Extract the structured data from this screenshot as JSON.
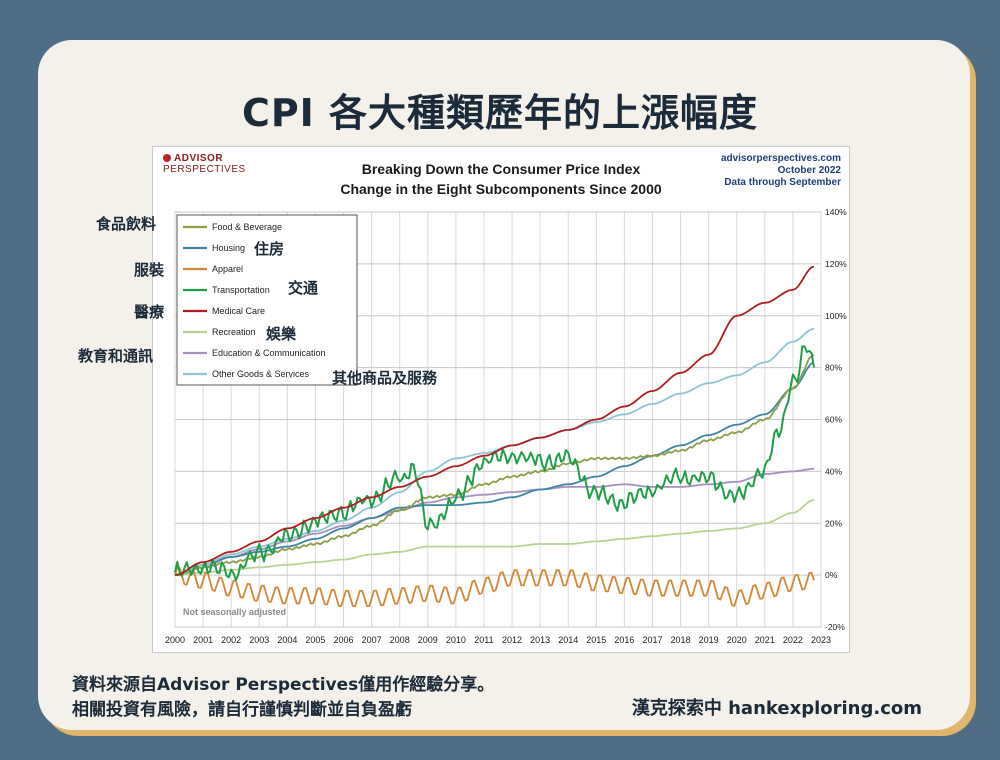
{
  "page_title": "CPI  各大種類歷年的上漲幅度",
  "annotations": {
    "food": "食品飲料",
    "housing": "住房",
    "apparel": "服裝",
    "transport": "交通",
    "medical": "醫療",
    "recreation": "娛樂",
    "education": "教育和通訊",
    "other": "其他商品及服務"
  },
  "footer": {
    "line1": "資料來源自Advisor  Perspectives僅用作經驗分享。",
    "line2": "相關投資有風險，請自行謹慎判斷並自負盈虧",
    "brand": "漢克探索中 hankexploring.com"
  },
  "chart_data": {
    "type": "line",
    "logo_line1": "ADVISOR",
    "logo_line2": "PERSPECTIVES",
    "title": "Breaking Down the Consumer Price Index",
    "subtitle": "Change in the Eight Subcomponents Since 2000",
    "source_lines": [
      "advisorperspectives.com",
      "October 2022",
      "Data through September"
    ],
    "note": "Not seasonally adjusted",
    "xlabel": "",
    "ylabel": "",
    "x_ticks": [
      "2000",
      "2001",
      "2002",
      "2003",
      "2004",
      "2005",
      "2006",
      "2007",
      "2008",
      "2009",
      "2010",
      "2011",
      "2012",
      "2013",
      "2014",
      "2015",
      "2016",
      "2017",
      "2018",
      "2019",
      "2020",
      "2021",
      "2022",
      "2023"
    ],
    "y_ticks": [
      "140%",
      "120%",
      "100%",
      "80%",
      "60%",
      "40%",
      "20%",
      "0%",
      "-20%"
    ],
    "xlim": [
      2000,
      2023
    ],
    "ylim": [
      -20,
      140
    ],
    "grid": true,
    "legend_position": "top-left",
    "series": [
      {
        "name": "Food & Beverage",
        "color": "#8ca04a",
        "style": "smooth",
        "points": [
          [
            2000,
            0
          ],
          [
            2001,
            3
          ],
          [
            2002,
            5
          ],
          [
            2003,
            7
          ],
          [
            2004,
            10
          ],
          [
            2005,
            12
          ],
          [
            2006,
            15
          ],
          [
            2007,
            19
          ],
          [
            2008,
            25
          ],
          [
            2009,
            30
          ],
          [
            2010,
            31
          ],
          [
            2011,
            35
          ],
          [
            2012,
            38
          ],
          [
            2013,
            40
          ],
          [
            2014,
            43
          ],
          [
            2015,
            45
          ],
          [
            2016,
            45
          ],
          [
            2017,
            46
          ],
          [
            2018,
            48
          ],
          [
            2019,
            52
          ],
          [
            2020,
            55
          ],
          [
            2021,
            60
          ],
          [
            2022,
            72
          ],
          [
            2022.75,
            85
          ]
        ]
      },
      {
        "name": "Housing",
        "color": "#3c85a6",
        "style": "smooth",
        "points": [
          [
            2000,
            0
          ],
          [
            2001,
            4
          ],
          [
            2002,
            7
          ],
          [
            2003,
            9
          ],
          [
            2004,
            11
          ],
          [
            2005,
            14
          ],
          [
            2006,
            18
          ],
          [
            2007,
            22
          ],
          [
            2008,
            26
          ],
          [
            2009,
            27
          ],
          [
            2010,
            27
          ],
          [
            2011,
            28
          ],
          [
            2012,
            30
          ],
          [
            2013,
            33
          ],
          [
            2014,
            35
          ],
          [
            2015,
            38
          ],
          [
            2016,
            42
          ],
          [
            2017,
            46
          ],
          [
            2018,
            50
          ],
          [
            2019,
            54
          ],
          [
            2020,
            58
          ],
          [
            2021,
            62
          ],
          [
            2022,
            72
          ],
          [
            2022.75,
            82
          ]
        ]
      },
      {
        "name": "Apparel",
        "color": "#d48737",
        "style": "seasonal",
        "points": [
          [
            2000,
            0
          ],
          [
            2001,
            -2
          ],
          [
            2002,
            -5
          ],
          [
            2003,
            -7
          ],
          [
            2004,
            -8
          ],
          [
            2005,
            -8
          ],
          [
            2006,
            -9
          ],
          [
            2007,
            -9
          ],
          [
            2008,
            -8
          ],
          [
            2009,
            -7
          ],
          [
            2010,
            -8
          ],
          [
            2011,
            -4
          ],
          [
            2012,
            -1
          ],
          [
            2013,
            -1
          ],
          [
            2014,
            -1
          ],
          [
            2015,
            -3
          ],
          [
            2016,
            -4
          ],
          [
            2017,
            -5
          ],
          [
            2018,
            -5
          ],
          [
            2019,
            -5
          ],
          [
            2020,
            -9
          ],
          [
            2021,
            -6
          ],
          [
            2022,
            -3
          ],
          [
            2022.75,
            -2
          ]
        ]
      },
      {
        "name": "Transportation",
        "color": "#1f9e47",
        "style": "volatile",
        "points": [
          [
            2000,
            1
          ],
          [
            2001,
            3
          ],
          [
            2002,
            1
          ],
          [
            2003,
            8
          ],
          [
            2004,
            15
          ],
          [
            2005,
            21
          ],
          [
            2006,
            25
          ],
          [
            2007,
            30
          ],
          [
            2008,
            37
          ],
          [
            2008.5,
            42
          ],
          [
            2009,
            18
          ],
          [
            2010,
            29
          ],
          [
            2011,
            44
          ],
          [
            2012,
            46
          ],
          [
            2013,
            44
          ],
          [
            2014,
            45
          ],
          [
            2015,
            31
          ],
          [
            2016,
            28
          ],
          [
            2017,
            33
          ],
          [
            2018,
            38
          ],
          [
            2019,
            37
          ],
          [
            2020,
            30
          ],
          [
            2021,
            41
          ],
          [
            2021.5,
            55
          ],
          [
            2022,
            75
          ],
          [
            2022.5,
            88
          ],
          [
            2022.75,
            80
          ]
        ]
      },
      {
        "name": "Medical Care",
        "color": "#b01e1e",
        "style": "smooth",
        "points": [
          [
            2000,
            0
          ],
          [
            2001,
            5
          ],
          [
            2002,
            9
          ],
          [
            2003,
            13
          ],
          [
            2004,
            18
          ],
          [
            2005,
            22
          ],
          [
            2006,
            26
          ],
          [
            2007,
            30
          ],
          [
            2008,
            34
          ],
          [
            2009,
            38
          ],
          [
            2010,
            42
          ],
          [
            2011,
            46
          ],
          [
            2012,
            50
          ],
          [
            2013,
            53
          ],
          [
            2014,
            56
          ],
          [
            2015,
            60
          ],
          [
            2016,
            65
          ],
          [
            2017,
            71
          ],
          [
            2018,
            78
          ],
          [
            2019,
            85
          ],
          [
            2020,
            100
          ],
          [
            2021,
            105
          ],
          [
            2022,
            110
          ],
          [
            2022.75,
            119
          ]
        ]
      },
      {
        "name": "Recreation",
        "color": "#b7d48f",
        "style": "smooth",
        "points": [
          [
            2000,
            0
          ],
          [
            2001,
            1
          ],
          [
            2002,
            2
          ],
          [
            2003,
            3
          ],
          [
            2004,
            4
          ],
          [
            2005,
            5
          ],
          [
            2006,
            6
          ],
          [
            2007,
            8
          ],
          [
            2008,
            9
          ],
          [
            2009,
            11
          ],
          [
            2010,
            11
          ],
          [
            2011,
            11
          ],
          [
            2012,
            11
          ],
          [
            2013,
            12
          ],
          [
            2014,
            12
          ],
          [
            2015,
            13
          ],
          [
            2016,
            14
          ],
          [
            2017,
            15
          ],
          [
            2018,
            16
          ],
          [
            2019,
            17
          ],
          [
            2020,
            18
          ],
          [
            2021,
            20
          ],
          [
            2022,
            24
          ],
          [
            2022.75,
            29
          ]
        ]
      },
      {
        "name": "Education & Communication",
        "color": "#a58fbf",
        "style": "smooth",
        "points": [
          [
            2000,
            0
          ],
          [
            2001,
            3
          ],
          [
            2002,
            7
          ],
          [
            2003,
            10
          ],
          [
            2004,
            13
          ],
          [
            2005,
            16
          ],
          [
            2006,
            19
          ],
          [
            2007,
            22
          ],
          [
            2008,
            25
          ],
          [
            2009,
            28
          ],
          [
            2010,
            30
          ],
          [
            2011,
            31
          ],
          [
            2012,
            32
          ],
          [
            2013,
            33
          ],
          [
            2014,
            34
          ],
          [
            2015,
            34
          ],
          [
            2016,
            35
          ],
          [
            2017,
            34
          ],
          [
            2018,
            34
          ],
          [
            2019,
            35
          ],
          [
            2020,
            36
          ],
          [
            2021,
            39
          ],
          [
            2022,
            40
          ],
          [
            2022.75,
            41
          ]
        ]
      },
      {
        "name": "Other Goods & Services",
        "color": "#8cc5d4",
        "style": "smooth",
        "points": [
          [
            2000,
            0
          ],
          [
            2001,
            4
          ],
          [
            2002,
            8
          ],
          [
            2003,
            11
          ],
          [
            2004,
            14
          ],
          [
            2005,
            17
          ],
          [
            2006,
            21
          ],
          [
            2007,
            26
          ],
          [
            2008,
            32
          ],
          [
            2009,
            40
          ],
          [
            2010,
            45
          ],
          [
            2011,
            47
          ],
          [
            2012,
            50
          ],
          [
            2013,
            53
          ],
          [
            2014,
            56
          ],
          [
            2015,
            59
          ],
          [
            2016,
            62
          ],
          [
            2017,
            66
          ],
          [
            2018,
            70
          ],
          [
            2019,
            74
          ],
          [
            2020,
            77
          ],
          [
            2021,
            82
          ],
          [
            2022,
            90
          ],
          [
            2022.75,
            95
          ]
        ]
      }
    ]
  }
}
